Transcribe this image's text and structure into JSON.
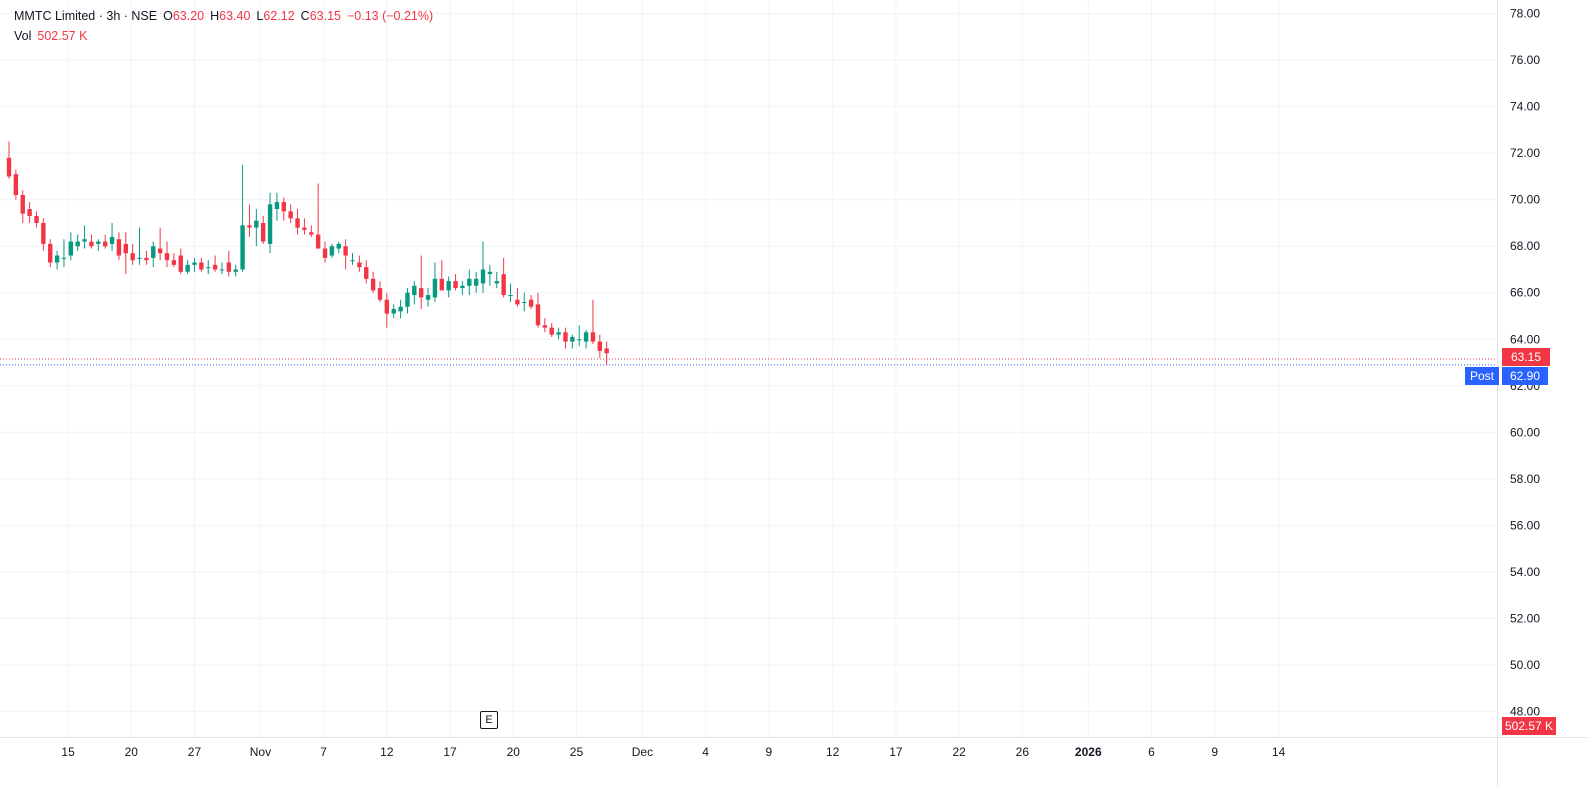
{
  "legend": {
    "symbol": "MMTC Limited · 3h · NSE",
    "o_label": "O",
    "o_value": "63.20",
    "h_label": "H",
    "h_value": "63.40",
    "l_label": "L",
    "l_value": "62.12",
    "c_label": "C",
    "c_value": "63.15",
    "change": "−0.13 (−0.21%)",
    "vol_label": "Vol",
    "vol_value": "502.57 K"
  },
  "tags": {
    "last_price": "63.15",
    "post_label": "Post",
    "post_price": "62.90",
    "volume_last": "502.57 K",
    "earnings_marker": "E"
  },
  "colors": {
    "up": "#089981",
    "down": "#f23645",
    "up_volume": "#92d2cc",
    "down_volume": "#f7a9a7",
    "grid": "#f0f3fa",
    "post_line": "#2962ff"
  },
  "chart_data": {
    "type": "candlestick",
    "y_axis": {
      "ticks": [
        "78.00",
        "76.00",
        "74.00",
        "72.00",
        "70.00",
        "68.00",
        "66.00",
        "64.00",
        "62.00",
        "60.00",
        "58.00",
        "56.00",
        "54.00",
        "52.00",
        "50.00",
        "48.00"
      ],
      "range": [
        46.9,
        78.5
      ],
      "side": "right"
    },
    "x_axis": {
      "labels": [
        {
          "text": "15",
          "index": 8.6
        },
        {
          "text": "20",
          "index": 17.8
        },
        {
          "text": "27",
          "index": 27.0
        },
        {
          "text": "Nov",
          "index": 36.6
        },
        {
          "text": "7",
          "index": 45.8
        },
        {
          "text": "12",
          "index": 55.0
        },
        {
          "text": "17",
          "index": 64.2
        },
        {
          "text": "20",
          "index": 73.4
        },
        {
          "text": "25",
          "index": 82.6
        },
        {
          "text": "Dec",
          "index": 92.2
        },
        {
          "text": "4",
          "index": 101.4
        },
        {
          "text": "9",
          "index": 110.6
        },
        {
          "text": "12",
          "index": 119.9
        },
        {
          "text": "17",
          "index": 129.1
        },
        {
          "text": "22",
          "index": 138.3
        },
        {
          "text": "26",
          "index": 147.5
        },
        {
          "text": "2026",
          "index": 157.1,
          "bold": true
        },
        {
          "text": "6",
          "index": 166.3
        },
        {
          "text": "9",
          "index": 175.5
        },
        {
          "text": "14",
          "index": 184.8
        }
      ]
    },
    "series": [
      {
        "name": "MMTC Limited",
        "ohlc": [
          [
            71.8,
            72.5,
            70.9,
            71.0
          ],
          [
            71.1,
            71.3,
            70.0,
            70.2
          ],
          [
            70.2,
            70.4,
            69.0,
            69.4
          ],
          [
            69.6,
            69.9,
            69.0,
            69.3
          ],
          [
            69.3,
            69.5,
            68.8,
            69.0
          ],
          [
            69.0,
            69.2,
            67.8,
            68.1
          ],
          [
            68.1,
            68.3,
            67.1,
            67.3
          ],
          [
            67.3,
            67.8,
            67.0,
            67.6
          ],
          [
            67.5,
            68.3,
            67.1,
            67.5
          ],
          [
            67.6,
            68.6,
            67.4,
            68.2
          ],
          [
            68.0,
            68.5,
            67.8,
            68.2
          ],
          [
            68.2,
            68.9,
            67.9,
            68.3
          ],
          [
            68.2,
            68.5,
            67.9,
            68.0
          ],
          [
            68.1,
            68.3,
            67.8,
            68.2
          ],
          [
            68.2,
            68.5,
            67.9,
            68.0
          ],
          [
            68.1,
            69.0,
            67.8,
            68.4
          ],
          [
            68.3,
            68.6,
            67.4,
            67.6
          ],
          [
            68.1,
            68.6,
            66.8,
            67.7
          ],
          [
            67.7,
            68.1,
            67.2,
            67.4
          ],
          [
            67.5,
            68.8,
            67.2,
            67.5
          ],
          [
            67.5,
            67.8,
            67.2,
            67.4
          ],
          [
            67.5,
            68.2,
            67.1,
            68.0
          ],
          [
            67.9,
            68.8,
            67.4,
            67.7
          ],
          [
            67.7,
            68.2,
            67.1,
            67.4
          ],
          [
            67.4,
            67.7,
            67.1,
            67.2
          ],
          [
            67.6,
            67.9,
            66.8,
            66.9
          ],
          [
            66.9,
            67.4,
            66.8,
            67.2
          ],
          [
            67.2,
            67.5,
            66.9,
            67.3
          ],
          [
            67.3,
            67.5,
            66.9,
            67.0
          ],
          [
            67.1,
            67.4,
            66.8,
            67.1
          ],
          [
            67.2,
            67.6,
            66.9,
            67.0
          ],
          [
            67.0,
            67.3,
            66.8,
            67.0
          ],
          [
            67.3,
            67.8,
            66.7,
            66.9
          ],
          [
            66.9,
            67.2,
            66.7,
            67.0
          ],
          [
            67.0,
            71.5,
            66.9,
            68.9
          ],
          [
            68.9,
            69.8,
            68.4,
            68.8
          ],
          [
            68.8,
            69.6,
            68.0,
            69.1
          ],
          [
            69.0,
            69.3,
            68.1,
            68.2
          ],
          [
            68.1,
            70.3,
            67.7,
            69.8
          ],
          [
            69.6,
            70.3,
            69.1,
            69.9
          ],
          [
            69.9,
            70.1,
            69.1,
            69.5
          ],
          [
            69.5,
            69.8,
            69.0,
            69.2
          ],
          [
            69.2,
            69.6,
            68.5,
            68.8
          ],
          [
            68.8,
            69.2,
            68.5,
            68.7
          ],
          [
            68.6,
            68.9,
            68.4,
            68.5
          ],
          [
            68.5,
            70.7,
            67.9,
            67.9
          ],
          [
            67.9,
            68.2,
            67.3,
            67.5
          ],
          [
            67.6,
            68.1,
            67.5,
            68.0
          ],
          [
            67.9,
            68.2,
            67.7,
            68.1
          ],
          [
            68.0,
            68.3,
            67.0,
            67.6
          ],
          [
            67.4,
            67.7,
            67.2,
            67.4
          ],
          [
            67.3,
            67.6,
            66.9,
            67.1
          ],
          [
            67.1,
            67.4,
            66.4,
            66.6
          ],
          [
            66.6,
            66.9,
            66.0,
            66.1
          ],
          [
            66.2,
            66.5,
            65.6,
            65.7
          ],
          [
            65.7,
            66.0,
            64.5,
            65.1
          ],
          [
            65.1,
            65.5,
            64.9,
            65.3
          ],
          [
            65.2,
            65.7,
            64.9,
            65.4
          ],
          [
            65.4,
            66.2,
            65.1,
            66.0
          ],
          [
            65.9,
            66.5,
            65.5,
            66.3
          ],
          [
            66.2,
            67.6,
            65.3,
            65.8
          ],
          [
            65.7,
            66.2,
            65.4,
            65.9
          ],
          [
            65.8,
            67.3,
            65.6,
            66.6
          ],
          [
            66.6,
            67.4,
            66.2,
            66.1
          ],
          [
            66.1,
            66.7,
            65.8,
            66.5
          ],
          [
            66.5,
            66.8,
            66.1,
            66.2
          ],
          [
            66.2,
            66.5,
            65.9,
            66.3
          ],
          [
            66.3,
            67.0,
            65.9,
            66.6
          ],
          [
            66.3,
            66.9,
            66.0,
            66.6
          ],
          [
            66.4,
            68.2,
            66.0,
            67.0
          ],
          [
            66.8,
            67.2,
            66.3,
            66.9
          ],
          [
            66.4,
            66.9,
            66.2,
            66.5
          ],
          [
            66.8,
            67.5,
            65.8,
            65.9
          ],
          [
            65.9,
            66.4,
            65.6,
            65.9
          ],
          [
            65.7,
            66.2,
            65.4,
            65.5
          ],
          [
            65.6,
            66.0,
            65.2,
            65.6
          ],
          [
            65.7,
            65.9,
            65.3,
            65.4
          ],
          [
            65.5,
            66.0,
            64.5,
            64.6
          ],
          [
            64.6,
            64.9,
            64.3,
            64.5
          ],
          [
            64.5,
            64.7,
            64.1,
            64.2
          ],
          [
            64.2,
            64.5,
            64.0,
            64.3
          ],
          [
            64.3,
            64.5,
            63.6,
            63.9
          ],
          [
            63.9,
            64.2,
            63.6,
            64.1
          ],
          [
            64.0,
            64.6,
            63.7,
            64.0
          ],
          [
            63.9,
            64.4,
            63.6,
            64.3
          ],
          [
            64.3,
            65.7,
            63.8,
            63.9
          ],
          [
            63.9,
            64.2,
            63.2,
            63.5
          ],
          [
            63.6,
            63.9,
            62.9,
            63.4
          ]
        ]
      }
    ]
  }
}
